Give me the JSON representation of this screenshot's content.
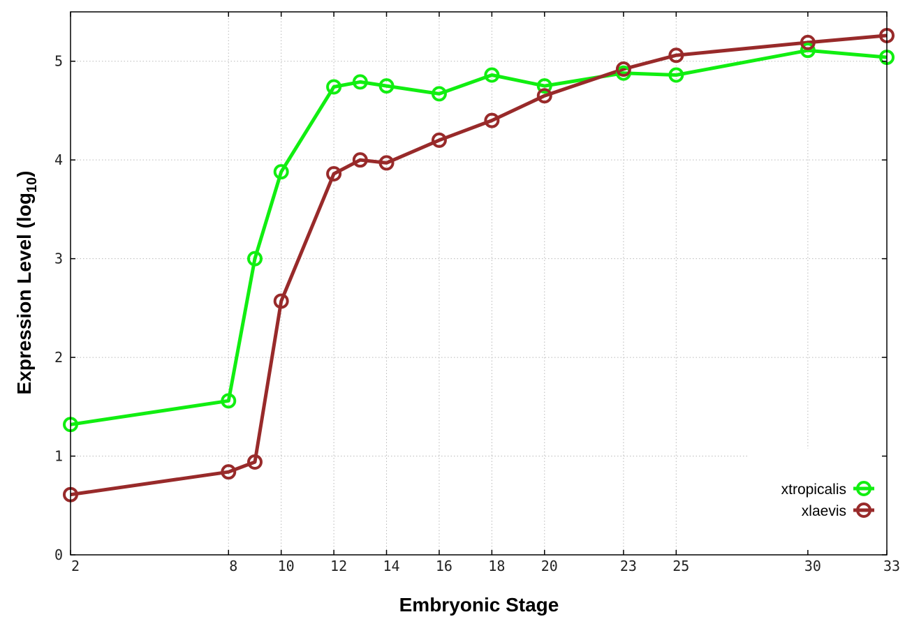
{
  "chart_data": {
    "type": "line",
    "xlabel": "Embryonic Stage",
    "ylabel_main": "Expression Level (log",
    "ylabel_sub": "10",
    "ylabel_end": ")",
    "x_ticks": [
      2,
      8,
      10,
      12,
      14,
      16,
      18,
      20,
      23,
      25,
      30,
      33
    ],
    "y_ticks": [
      0,
      1,
      2,
      3,
      4,
      5
    ],
    "xlim": [
      2,
      33
    ],
    "ylim": [
      0,
      5.5
    ],
    "grid": true,
    "legend_position": "bottom-right",
    "series": [
      {
        "name": "xtropicalis",
        "color": "#11ee11",
        "x": [
          2,
          8,
          9,
          10,
          12,
          13,
          14,
          16,
          18,
          20,
          23,
          25,
          30,
          33
        ],
        "y": [
          1.32,
          1.56,
          3.0,
          3.88,
          4.74,
          4.79,
          4.75,
          4.67,
          4.86,
          4.75,
          4.88,
          4.86,
          5.11,
          5.04
        ]
      },
      {
        "name": "xlaevis",
        "color": "#982a2a",
        "x": [
          2,
          8,
          9,
          10,
          12,
          13,
          14,
          16,
          18,
          20,
          23,
          25,
          30,
          33
        ],
        "y": [
          0.61,
          0.84,
          0.94,
          2.57,
          3.86,
          4.0,
          3.97,
          4.2,
          4.4,
          4.65,
          4.92,
          5.06,
          5.19,
          5.26
        ]
      }
    ]
  }
}
